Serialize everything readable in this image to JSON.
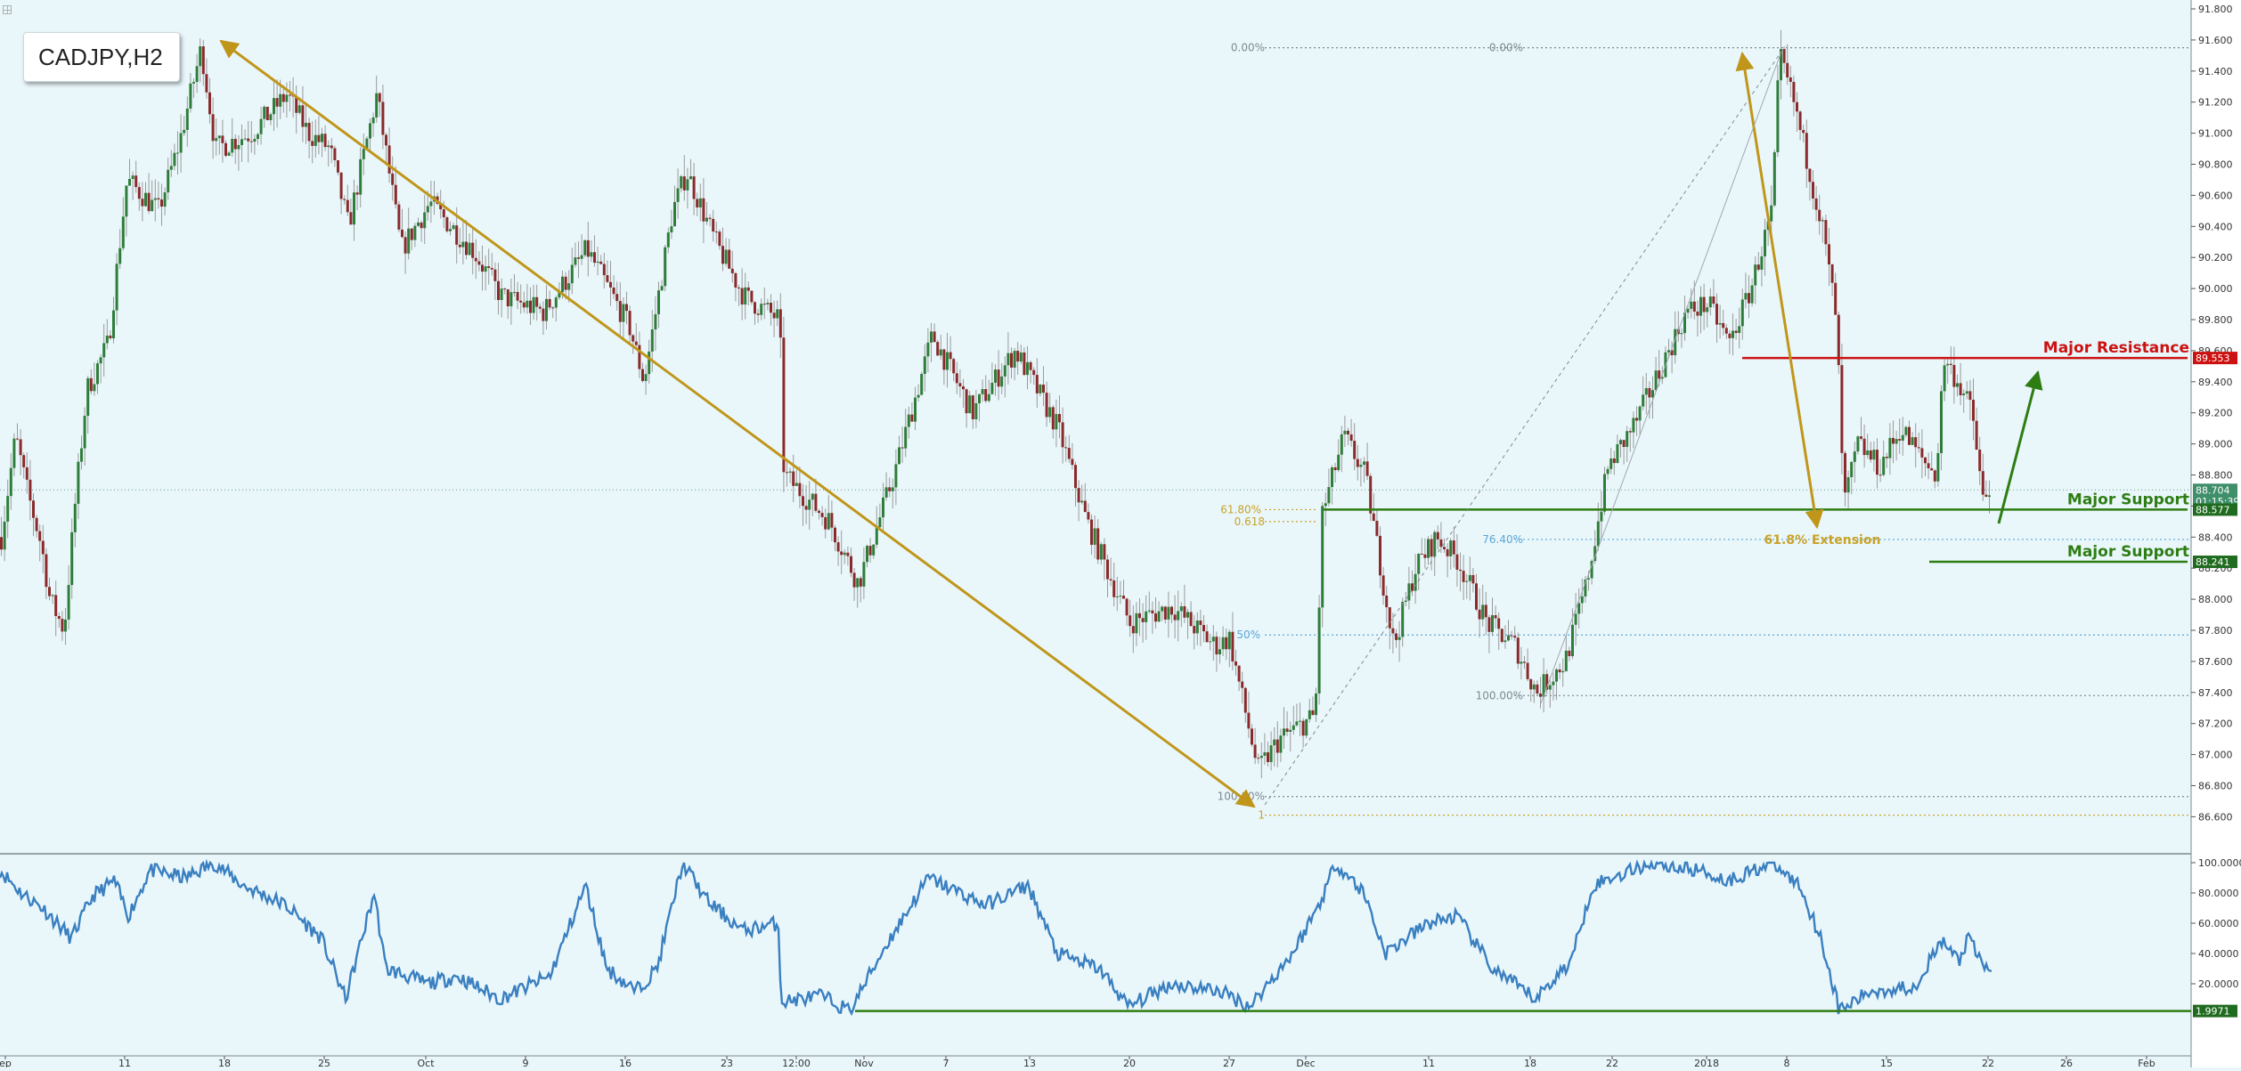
{
  "symbol": "CADJPY,H2",
  "chart_data": [
    {
      "type": "candlestick",
      "title": "CADJPY,H2",
      "ylim": [
        86.48,
        91.88
      ],
      "y_ticks": [
        "91.800",
        "91.600",
        "91.400",
        "91.200",
        "91.000",
        "90.800",
        "90.600",
        "90.400",
        "90.200",
        "90.000",
        "89.800",
        "89.600",
        "89.400",
        "89.200",
        "89.000",
        "88.800",
        "88.600",
        "88.400",
        "88.200",
        "88.000",
        "87.800",
        "87.600",
        "87.400",
        "87.200",
        "87.000",
        "86.800",
        "86.600"
      ],
      "x_ticks": [
        "ep",
        "11",
        "18",
        "25",
        "Oct",
        "9",
        "16",
        "23",
        "12:00",
        "Nov",
        "7",
        "13",
        "20",
        "27",
        "Dec",
        "11",
        "18",
        "22",
        "2018",
        "8",
        "15",
        "22",
        "26",
        "Feb"
      ],
      "anchors": [
        {
          "t": 0,
          "p": 88.4
        },
        {
          "t": 10,
          "p": 89.05
        },
        {
          "t": 18,
          "p": 88.7
        },
        {
          "t": 28,
          "p": 88.35
        },
        {
          "t": 34,
          "p": 88.0
        },
        {
          "t": 44,
          "p": 87.8
        },
        {
          "t": 52,
          "p": 88.65
        },
        {
          "t": 60,
          "p": 89.35
        },
        {
          "t": 75,
          "p": 89.65
        },
        {
          "t": 88,
          "p": 90.7
        },
        {
          "t": 110,
          "p": 90.5
        },
        {
          "t": 125,
          "p": 90.95
        },
        {
          "t": 140,
          "p": 91.55
        },
        {
          "t": 150,
          "p": 90.9
        },
        {
          "t": 175,
          "p": 91.0
        },
        {
          "t": 200,
          "p": 91.25
        },
        {
          "t": 215,
          "p": 91.0
        },
        {
          "t": 230,
          "p": 90.9
        },
        {
          "t": 243,
          "p": 90.4
        },
        {
          "t": 263,
          "p": 91.25
        },
        {
          "t": 280,
          "p": 90.25
        },
        {
          "t": 300,
          "p": 90.55
        },
        {
          "t": 330,
          "p": 90.25
        },
        {
          "t": 350,
          "p": 89.95
        },
        {
          "t": 380,
          "p": 89.85
        },
        {
          "t": 410,
          "p": 90.25
        },
        {
          "t": 440,
          "p": 89.75
        },
        {
          "t": 450,
          "p": 89.4
        },
        {
          "t": 470,
          "p": 90.5
        },
        {
          "t": 480,
          "p": 90.75
        },
        {
          "t": 500,
          "p": 90.3
        },
        {
          "t": 520,
          "p": 89.95
        },
        {
          "t": 545,
          "p": 89.8
        },
        {
          "t": 548,
          "p": 88.8
        },
        {
          "t": 580,
          "p": 88.5
        },
        {
          "t": 600,
          "p": 88.1
        },
        {
          "t": 625,
          "p": 88.8
        },
        {
          "t": 652,
          "p": 89.7
        },
        {
          "t": 680,
          "p": 89.2
        },
        {
          "t": 710,
          "p": 89.6
        },
        {
          "t": 740,
          "p": 89.1
        },
        {
          "t": 760,
          "p": 88.5
        },
        {
          "t": 790,
          "p": 87.85
        },
        {
          "t": 820,
          "p": 87.95
        },
        {
          "t": 850,
          "p": 87.7
        },
        {
          "t": 860,
          "p": 87.75
        },
        {
          "t": 868,
          "p": 87.4
        },
        {
          "t": 880,
          "p": 86.9
        },
        {
          "t": 895,
          "p": 87.1
        },
        {
          "t": 920,
          "p": 87.25
        },
        {
          "t": 925,
          "p": 88.55
        },
        {
          "t": 940,
          "p": 89.05
        },
        {
          "t": 955,
          "p": 88.8
        },
        {
          "t": 965,
          "p": 88.25
        },
        {
          "t": 975,
          "p": 87.7
        },
        {
          "t": 990,
          "p": 88.2
        },
        {
          "t": 1005,
          "p": 88.4
        },
        {
          "t": 1020,
          "p": 88.25
        },
        {
          "t": 1040,
          "p": 87.85
        },
        {
          "t": 1060,
          "p": 87.7
        },
        {
          "t": 1075,
          "p": 87.4
        },
        {
          "t": 1095,
          "p": 87.6
        },
        {
          "t": 1110,
          "p": 88.1
        },
        {
          "t": 1125,
          "p": 88.85
        },
        {
          "t": 1145,
          "p": 89.15
        },
        {
          "t": 1165,
          "p": 89.55
        },
        {
          "t": 1180,
          "p": 89.85
        },
        {
          "t": 1195,
          "p": 89.9
        },
        {
          "t": 1210,
          "p": 89.65
        },
        {
          "t": 1225,
          "p": 90.0
        },
        {
          "t": 1240,
          "p": 90.5
        },
        {
          "t": 1245,
          "p": 91.5
        },
        {
          "t": 1255,
          "p": 91.2
        },
        {
          "t": 1265,
          "p": 90.8
        },
        {
          "t": 1275,
          "p": 90.4
        },
        {
          "t": 1285,
          "p": 89.8
        },
        {
          "t": 1290,
          "p": 88.6
        },
        {
          "t": 1300,
          "p": 89.0
        },
        {
          "t": 1315,
          "p": 88.85
        },
        {
          "t": 1330,
          "p": 89.1
        },
        {
          "t": 1345,
          "p": 88.9
        },
        {
          "t": 1355,
          "p": 88.8
        },
        {
          "t": 1360,
          "p": 89.55
        },
        {
          "t": 1370,
          "p": 89.4
        },
        {
          "t": 1380,
          "p": 89.2
        },
        {
          "t": 1388,
          "p": 88.6
        },
        {
          "t": 1392,
          "p": 88.7
        }
      ],
      "price_labels": [
        {
          "text": "89.553",
          "value": 89.553,
          "color": "#cc1111"
        },
        {
          "text": "88.704",
          "value": 88.704,
          "color": "#3f8f6a"
        },
        {
          "text": "01:15:39",
          "value": 88.63,
          "color": "#3f8f6a"
        },
        {
          "text": "88.577",
          "value": 88.577,
          "color": "#1f6b1f"
        },
        {
          "text": "88.241",
          "value": 88.241,
          "color": "#1f6b1f"
        }
      ],
      "levels": [
        {
          "label": "Major Resistance",
          "value": 89.553,
          "color": "#cc1111",
          "t_start": 1215,
          "t_end": 1420
        },
        {
          "label": "Major Support",
          "value": 88.577,
          "color": "#2e7d12",
          "t_start": 925,
          "t_end": 1528
        },
        {
          "label": "Major Support",
          "value": 88.241,
          "color": "#2e7d12",
          "t_start": 1345,
          "t_end": 1528
        }
      ],
      "fib_left": {
        "labels": [
          "0.00%",
          "61.80%",
          "0.618",
          "50%",
          "100.00%",
          "1"
        ],
        "values": [
          91.55,
          88.577,
          88.5,
          87.77,
          86.73,
          86.61
        ]
      },
      "fib_right": {
        "labels": [
          "0.00%",
          "76.40%",
          "100.00%"
        ],
        "values": [
          91.55,
          88.385,
          87.38
        ]
      },
      "extension_label": "61.8% Extension",
      "current_price": 88.704
    },
    {
      "type": "line",
      "ylim": [
        0,
        100
      ],
      "y_ticks": [
        "100.0000",
        "80.0000",
        "60.0000",
        "40.0000",
        "20.0000"
      ],
      "level_label": "1.9971",
      "level_value": 1.9971,
      "anchors": [
        {
          "t": 0,
          "v": 95
        },
        {
          "t": 15,
          "v": 80
        },
        {
          "t": 30,
          "v": 70
        },
        {
          "t": 50,
          "v": 50
        },
        {
          "t": 65,
          "v": 78
        },
        {
          "t": 80,
          "v": 88
        },
        {
          "t": 90,
          "v": 65
        },
        {
          "t": 105,
          "v": 95
        },
        {
          "t": 130,
          "v": 90
        },
        {
          "t": 150,
          "v": 100
        },
        {
          "t": 170,
          "v": 85
        },
        {
          "t": 200,
          "v": 72
        },
        {
          "t": 225,
          "v": 50
        },
        {
          "t": 242,
          "v": 10
        },
        {
          "t": 262,
          "v": 80
        },
        {
          "t": 270,
          "v": 30
        },
        {
          "t": 300,
          "v": 20
        },
        {
          "t": 320,
          "v": 25
        },
        {
          "t": 350,
          "v": 10
        },
        {
          "t": 385,
          "v": 25
        },
        {
          "t": 410,
          "v": 85
        },
        {
          "t": 425,
          "v": 30
        },
        {
          "t": 445,
          "v": 15
        },
        {
          "t": 460,
          "v": 30
        },
        {
          "t": 478,
          "v": 100
        },
        {
          "t": 495,
          "v": 75
        },
        {
          "t": 520,
          "v": 55
        },
        {
          "t": 545,
          "v": 60
        },
        {
          "t": 547,
          "v": 8
        },
        {
          "t": 575,
          "v": 12
        },
        {
          "t": 595,
          "v": 2
        },
        {
          "t": 620,
          "v": 45
        },
        {
          "t": 650,
          "v": 90
        },
        {
          "t": 690,
          "v": 72
        },
        {
          "t": 720,
          "v": 85
        },
        {
          "t": 740,
          "v": 40
        },
        {
          "t": 770,
          "v": 30
        },
        {
          "t": 790,
          "v": 5
        },
        {
          "t": 820,
          "v": 20
        },
        {
          "t": 855,
          "v": 15
        },
        {
          "t": 875,
          "v": 5
        },
        {
          "t": 905,
          "v": 40
        },
        {
          "t": 925,
          "v": 75
        },
        {
          "t": 935,
          "v": 100
        },
        {
          "t": 955,
          "v": 80
        },
        {
          "t": 970,
          "v": 40
        },
        {
          "t": 1000,
          "v": 60
        },
        {
          "t": 1020,
          "v": 65
        },
        {
          "t": 1045,
          "v": 30
        },
        {
          "t": 1075,
          "v": 10
        },
        {
          "t": 1100,
          "v": 35
        },
        {
          "t": 1115,
          "v": 85
        },
        {
          "t": 1155,
          "v": 100
        },
        {
          "t": 1190,
          "v": 95
        },
        {
          "t": 1210,
          "v": 88
        },
        {
          "t": 1240,
          "v": 100
        },
        {
          "t": 1260,
          "v": 85
        },
        {
          "t": 1275,
          "v": 50
        },
        {
          "t": 1288,
          "v": 2
        },
        {
          "t": 1310,
          "v": 15
        },
        {
          "t": 1340,
          "v": 18
        },
        {
          "t": 1360,
          "v": 48
        },
        {
          "t": 1372,
          "v": 35
        },
        {
          "t": 1378,
          "v": 50
        },
        {
          "t": 1390,
          "v": 30
        },
        {
          "t": 1395,
          "v": 32
        }
      ]
    }
  ]
}
